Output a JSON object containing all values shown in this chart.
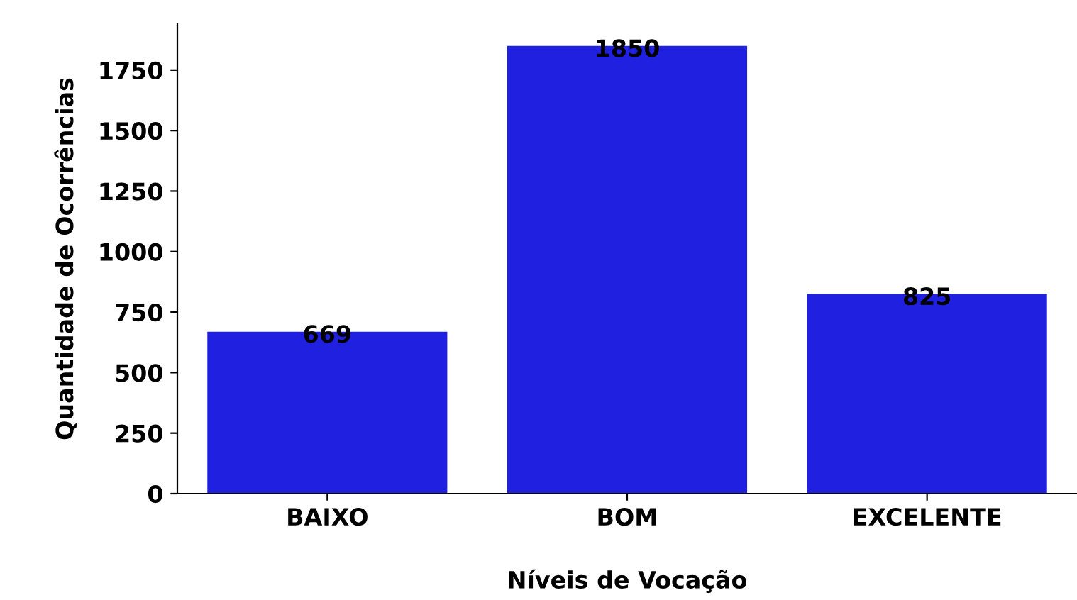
{
  "chart_data": {
    "type": "bar",
    "xlabel": "Níveis de Vocação",
    "ylabel": "Quantidade de Ocorrências",
    "categories": [
      "BAIXO",
      "BOM",
      "EXCELENTE"
    ],
    "values": [
      669,
      1850,
      825
    ],
    "color": "#2020e0",
    "ylim": [
      0,
      1940
    ],
    "yticks": [
      0,
      250,
      500,
      750,
      1000,
      1250,
      1500,
      1750
    ],
    "data_labels": true,
    "grid": false,
    "legend": false
  }
}
